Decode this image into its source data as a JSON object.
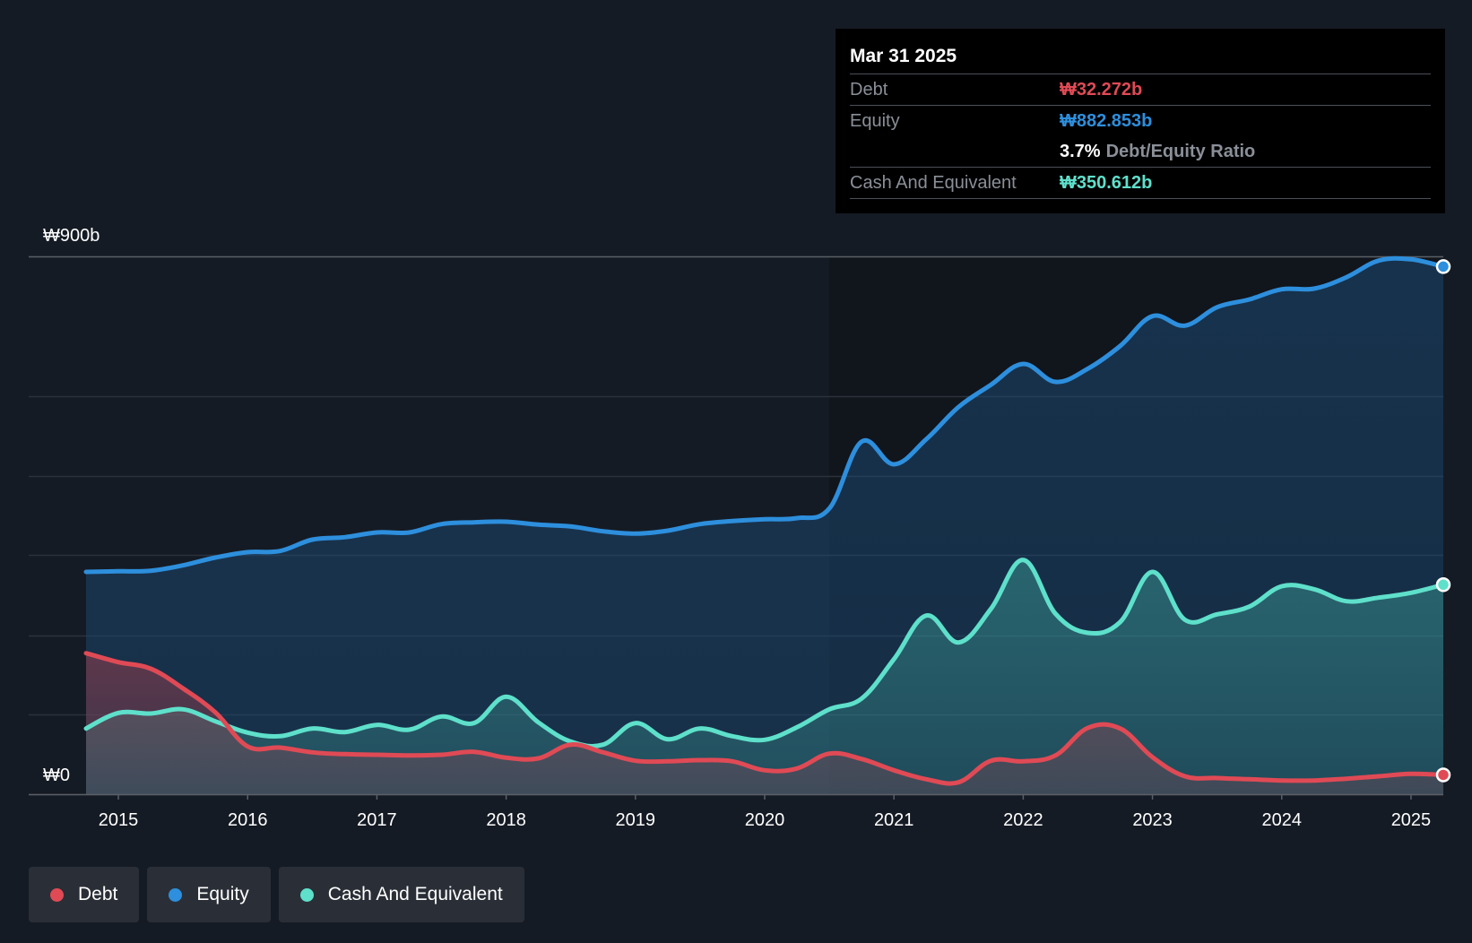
{
  "chart_data": {
    "type": "area",
    "title": "",
    "y_axis": {
      "top_label": "₩900b",
      "bottom_label": "₩0",
      "ylim": [
        0,
        900
      ],
      "unit": "₩b"
    },
    "x_ticks": [
      "2015",
      "2016",
      "2017",
      "2018",
      "2019",
      "2020",
      "2021",
      "2022",
      "2023",
      "2024",
      "2025"
    ],
    "x_range": [
      2014.75,
      2025.25
    ],
    "series": [
      {
        "name": "Equity",
        "color": "#2d8fdd",
        "points": [
          [
            2014.75,
            372
          ],
          [
            2015.0,
            373
          ],
          [
            2015.25,
            374
          ],
          [
            2015.5,
            383
          ],
          [
            2015.75,
            396
          ],
          [
            2016.0,
            405
          ],
          [
            2016.25,
            407
          ],
          [
            2016.5,
            426
          ],
          [
            2016.75,
            430
          ],
          [
            2017.0,
            438
          ],
          [
            2017.25,
            438
          ],
          [
            2017.5,
            452
          ],
          [
            2017.75,
            455
          ],
          [
            2018.0,
            456
          ],
          [
            2018.25,
            451
          ],
          [
            2018.5,
            448
          ],
          [
            2018.75,
            440
          ],
          [
            2019.0,
            436
          ],
          [
            2019.25,
            441
          ],
          [
            2019.5,
            452
          ],
          [
            2019.75,
            457
          ],
          [
            2020.0,
            460
          ],
          [
            2020.25,
            462
          ],
          [
            2020.5,
            478
          ],
          [
            2020.75,
            590
          ],
          [
            2021.0,
            552
          ],
          [
            2021.25,
            594
          ],
          [
            2021.5,
            648
          ],
          [
            2021.75,
            685
          ],
          [
            2022.0,
            720
          ],
          [
            2022.25,
            690
          ],
          [
            2022.5,
            712
          ],
          [
            2022.75,
            750
          ],
          [
            2023.0,
            800
          ],
          [
            2023.25,
            784
          ],
          [
            2023.5,
            815
          ],
          [
            2023.75,
            828
          ],
          [
            2024.0,
            845
          ],
          [
            2024.25,
            846
          ],
          [
            2024.5,
            865
          ],
          [
            2024.75,
            893
          ],
          [
            2025.0,
            895
          ],
          [
            2025.25,
            882.853
          ]
        ]
      },
      {
        "name": "Cash And Equivalent",
        "color": "#5ee0cb",
        "points": [
          [
            2014.75,
            110
          ],
          [
            2015.0,
            136
          ],
          [
            2015.25,
            135
          ],
          [
            2015.5,
            142
          ],
          [
            2015.75,
            122
          ],
          [
            2016.0,
            103
          ],
          [
            2016.25,
            97
          ],
          [
            2016.5,
            110
          ],
          [
            2016.75,
            104
          ],
          [
            2017.0,
            116
          ],
          [
            2017.25,
            108
          ],
          [
            2017.5,
            130
          ],
          [
            2017.75,
            119
          ],
          [
            2018.0,
            163
          ],
          [
            2018.25,
            120
          ],
          [
            2018.5,
            88
          ],
          [
            2018.75,
            83
          ],
          [
            2019.0,
            119
          ],
          [
            2019.25,
            92
          ],
          [
            2019.5,
            110
          ],
          [
            2019.75,
            97
          ],
          [
            2020.0,
            91
          ],
          [
            2020.25,
            112
          ],
          [
            2020.5,
            142
          ],
          [
            2020.75,
            160
          ],
          [
            2021.0,
            226
          ],
          [
            2021.25,
            299
          ],
          [
            2021.5,
            254
          ],
          [
            2021.75,
            310
          ],
          [
            2022.0,
            392
          ],
          [
            2022.25,
            302
          ],
          [
            2022.5,
            270
          ],
          [
            2022.75,
            288
          ],
          [
            2023.0,
            372
          ],
          [
            2023.25,
            292
          ],
          [
            2023.5,
            301
          ],
          [
            2023.75,
            314
          ],
          [
            2024.0,
            348
          ],
          [
            2024.25,
            343
          ],
          [
            2024.5,
            323
          ],
          [
            2024.75,
            329
          ],
          [
            2025.0,
            337
          ],
          [
            2025.25,
            350.612
          ]
        ]
      },
      {
        "name": "Debt",
        "color": "#e04a55",
        "points": [
          [
            2014.75,
            236
          ],
          [
            2015.0,
            221
          ],
          [
            2015.25,
            210
          ],
          [
            2015.5,
            177
          ],
          [
            2015.75,
            137
          ],
          [
            2016.0,
            80
          ],
          [
            2016.25,
            78
          ],
          [
            2016.5,
            70
          ],
          [
            2016.75,
            67
          ],
          [
            2017.0,
            66
          ],
          [
            2017.25,
            65
          ],
          [
            2017.5,
            66
          ],
          [
            2017.75,
            71
          ],
          [
            2018.0,
            61
          ],
          [
            2018.25,
            60
          ],
          [
            2018.5,
            83
          ],
          [
            2018.75,
            70
          ],
          [
            2019.0,
            56
          ],
          [
            2019.25,
            55
          ],
          [
            2019.5,
            57
          ],
          [
            2019.75,
            55
          ],
          [
            2020.0,
            40
          ],
          [
            2020.25,
            43
          ],
          [
            2020.5,
            68
          ],
          [
            2020.75,
            59
          ],
          [
            2021.0,
            40
          ],
          [
            2021.25,
            25
          ],
          [
            2021.5,
            20
          ],
          [
            2021.75,
            56
          ],
          [
            2022.0,
            55
          ],
          [
            2022.25,
            65
          ],
          [
            2022.5,
            111
          ],
          [
            2022.75,
            110
          ],
          [
            2023.0,
            62
          ],
          [
            2023.25,
            30
          ],
          [
            2023.5,
            27
          ],
          [
            2023.75,
            25
          ],
          [
            2024.0,
            23
          ],
          [
            2024.25,
            23
          ],
          [
            2024.5,
            26
          ],
          [
            2024.75,
            30
          ],
          [
            2025.0,
            34
          ],
          [
            2025.25,
            32.272
          ]
        ]
      }
    ],
    "tooltip": {
      "date": "Mar 31 2025",
      "debt_label": "Debt",
      "debt_value": "₩32.272b",
      "equity_label": "Equity",
      "equity_value": "₩882.853b",
      "ratio_value": "3.7%",
      "ratio_label": "Debt/Equity Ratio",
      "cash_label": "Cash And Equivalent",
      "cash_value": "₩350.612b"
    },
    "legend": [
      "Debt",
      "Equity",
      "Cash And Equivalent"
    ],
    "legend_placement": "bottom-left"
  },
  "colors": {
    "debt": "#e04a55",
    "equity": "#2d8fdd",
    "cash": "#5ee0cb",
    "background": "#151b24"
  }
}
